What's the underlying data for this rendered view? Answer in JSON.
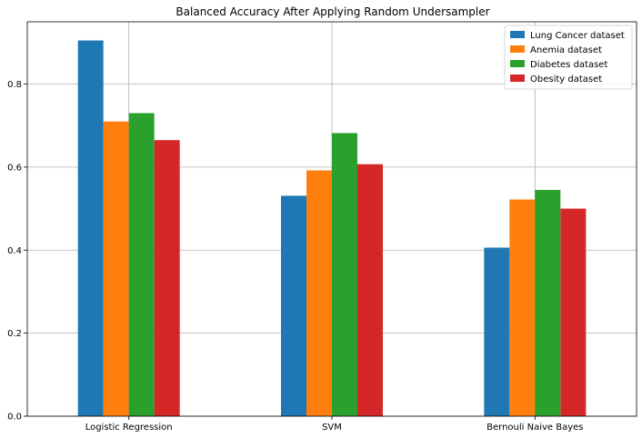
{
  "chart_data": {
    "type": "bar",
    "title": "Balanced Accuracy After Applying Random Undersampler",
    "xlabel": "",
    "ylabel": "",
    "categories": [
      "Logistic Regression",
      "SVM",
      "Bernouli Naive Bayes"
    ],
    "series": [
      {
        "name": "Lung Cancer dataset",
        "color": "#1f77b4",
        "values": [
          0.905,
          0.531,
          0.406
        ]
      },
      {
        "name": "Anemia dataset",
        "color": "#ff7f0e",
        "values": [
          0.71,
          0.592,
          0.522
        ]
      },
      {
        "name": "Diabetes dataset",
        "color": "#2ca02c",
        "values": [
          0.73,
          0.682,
          0.545
        ]
      },
      {
        "name": "Obesity dataset",
        "color": "#d62728",
        "values": [
          0.665,
          0.607,
          0.5
        ]
      }
    ],
    "ylim": [
      0,
      0.95
    ],
    "yticks": [
      "0.0",
      "0.2",
      "0.4",
      "0.6",
      "0.8"
    ],
    "ytick_values": [
      0.0,
      0.2,
      0.4,
      0.6,
      0.8
    ],
    "grid": true,
    "legend_position": "top-right"
  }
}
